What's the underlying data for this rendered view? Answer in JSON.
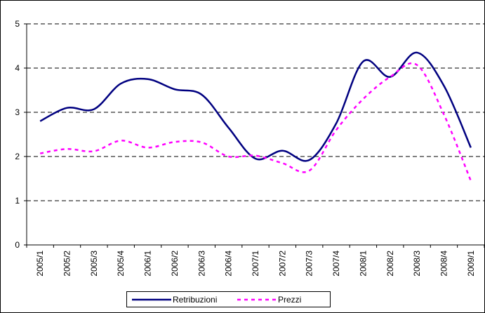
{
  "chart_data": {
    "type": "line",
    "categories": [
      "2005/1",
      "2005/2",
      "2005/3",
      "2005/4",
      "2006/1",
      "2006/2",
      "2006/3",
      "2006/4",
      "2007/1",
      "2007/2",
      "2007/3",
      "2007/4",
      "2008/1",
      "2008/2",
      "2008/3",
      "2008/4",
      "2009/1"
    ],
    "series": [
      {
        "name": "Retribuzioni",
        "color": "#000080",
        "dash": false,
        "values": [
          2.8,
          3.1,
          3.07,
          3.65,
          3.75,
          3.52,
          3.4,
          2.65,
          1.95,
          2.13,
          1.92,
          2.75,
          4.15,
          3.8,
          4.35,
          3.6,
          2.2
        ]
      },
      {
        "name": "Prezzi",
        "color": "#ff00ff",
        "dash": true,
        "values": [
          2.07,
          2.17,
          2.12,
          2.36,
          2.2,
          2.33,
          2.32,
          2.0,
          2.02,
          1.85,
          1.68,
          2.6,
          3.3,
          3.8,
          4.07,
          2.95,
          1.45
        ]
      }
    ],
    "ylim": [
      0,
      5
    ],
    "yticks": [
      0,
      1,
      2,
      3,
      4,
      5
    ],
    "grid": true,
    "legend": "bottom"
  }
}
